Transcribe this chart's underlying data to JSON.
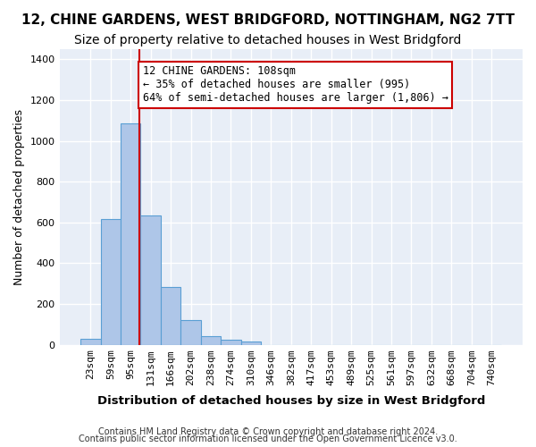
{
  "title1": "12, CHINE GARDENS, WEST BRIDGFORD, NOTTINGHAM, NG2 7TT",
  "title2": "Size of property relative to detached houses in West Bridgford",
  "xlabel": "Distribution of detached houses by size in West Bridgford",
  "ylabel": "Number of detached properties",
  "footer1": "Contains HM Land Registry data © Crown copyright and database right 2024.",
  "footer2": "Contains public sector information licensed under the Open Government Licence v3.0.",
  "bin_labels": [
    "23sqm",
    "59sqm",
    "95sqm",
    "131sqm",
    "166sqm",
    "202sqm",
    "238sqm",
    "274sqm",
    "310sqm",
    "346sqm",
    "382sqm",
    "417sqm",
    "453sqm",
    "489sqm",
    "525sqm",
    "561sqm",
    "597sqm",
    "632sqm",
    "668sqm",
    "704sqm",
    "740sqm"
  ],
  "bar_values": [
    30,
    615,
    1085,
    635,
    285,
    120,
    40,
    25,
    15,
    0,
    0,
    0,
    0,
    0,
    0,
    0,
    0,
    0,
    0,
    0,
    0
  ],
  "bar_color": "#aec6e8",
  "bar_edge_color": "#5a9fd4",
  "vline_x": 2.45,
  "vline_color": "#cc0000",
  "annotation_text": "12 CHINE GARDENS: 108sqm\n← 35% of detached houses are smaller (995)\n64% of semi-detached houses are larger (1,806) →",
  "annotation_box_color": "#ffffff",
  "annotation_box_edge_color": "#cc0000",
  "ylim": [
    0,
    1450
  ],
  "background_color": "#e8eef7",
  "grid_color": "#ffffff",
  "title1_fontsize": 11,
  "title2_fontsize": 10,
  "xlabel_fontsize": 9.5,
  "ylabel_fontsize": 9,
  "tick_fontsize": 8,
  "annotation_fontsize": 8.5
}
